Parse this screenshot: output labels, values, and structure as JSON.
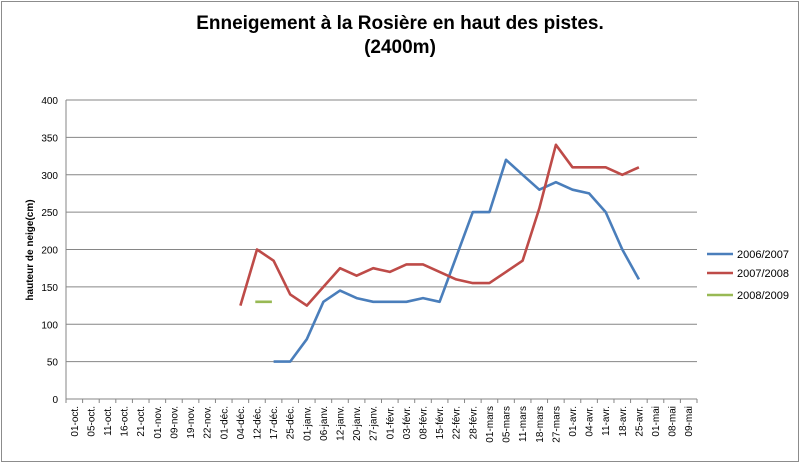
{
  "chart_data": {
    "type": "line",
    "title_line1": "Enneigement à la Rosière en haut des pistes.",
    "title_line2": "(2400m)",
    "ylabel": "hauteur de neige(cm)",
    "xlabel": "",
    "ylim": [
      0,
      400
    ],
    "yticks": [
      0,
      50,
      100,
      150,
      200,
      250,
      300,
      350,
      400
    ],
    "grid": true,
    "legend_position": "right",
    "categories": [
      "01-oct.",
      "05-oct.",
      "11-oct.",
      "16-oct.",
      "21-oct.",
      "01-nov.",
      "09-nov.",
      "19-nov.",
      "22-nov.",
      "01-déc.",
      "04-déc.",
      "12-déc.",
      "17-déc.",
      "25-déc.",
      "01-janv.",
      "06-janv.",
      "12-janv.",
      "20-janv.",
      "27-janv.",
      "01-févr.",
      "03-févr.",
      "08-févr.",
      "15-févr.",
      "22-févr.",
      "28-févr.",
      "01-mars",
      "05-mars",
      "11-mars",
      "18-mars",
      "27-mars",
      "01-avr.",
      "04-avr.",
      "11-avr.",
      "18-avr.",
      "25-avr.",
      "01-mai",
      "08-mai",
      "09-mai"
    ],
    "series": [
      {
        "name": "2006/2007",
        "color": "#4a7ebb",
        "points": [
          [
            12,
            50
          ],
          [
            13,
            50
          ],
          [
            14,
            80
          ],
          [
            15,
            130
          ],
          [
            16,
            145
          ],
          [
            17,
            135
          ],
          [
            18,
            130
          ],
          [
            19,
            130
          ],
          [
            20,
            130
          ],
          [
            21,
            135
          ],
          [
            22,
            130
          ],
          [
            23,
            190
          ],
          [
            24,
            250
          ],
          [
            25,
            250
          ],
          [
            26,
            320
          ],
          [
            27,
            300
          ],
          [
            28,
            280
          ],
          [
            29,
            290
          ],
          [
            30,
            280
          ],
          [
            31,
            275
          ],
          [
            32,
            250
          ],
          [
            33,
            200
          ],
          [
            34,
            160
          ]
        ]
      },
      {
        "name": "2007/2008",
        "color": "#be4b48",
        "points": [
          [
            10,
            125
          ],
          [
            11,
            200
          ],
          [
            12,
            185
          ],
          [
            13,
            140
          ],
          [
            14,
            125
          ],
          [
            15,
            150
          ],
          [
            16,
            175
          ],
          [
            17,
            165
          ],
          [
            18,
            175
          ],
          [
            19,
            170
          ],
          [
            20,
            180
          ],
          [
            21,
            180
          ],
          [
            22,
            170
          ],
          [
            23,
            160
          ],
          [
            24,
            155
          ],
          [
            25,
            155
          ],
          [
            26,
            170
          ],
          [
            27,
            185
          ],
          [
            28,
            255
          ],
          [
            29,
            340
          ],
          [
            30,
            310
          ],
          [
            31,
            310
          ],
          [
            32,
            310
          ],
          [
            33,
            300
          ],
          [
            34,
            310
          ]
        ]
      },
      {
        "name": "2008/2009",
        "color": "#98b954",
        "points": [
          [
            10.9,
            130
          ],
          [
            11.9,
            130
          ]
        ]
      }
    ]
  }
}
